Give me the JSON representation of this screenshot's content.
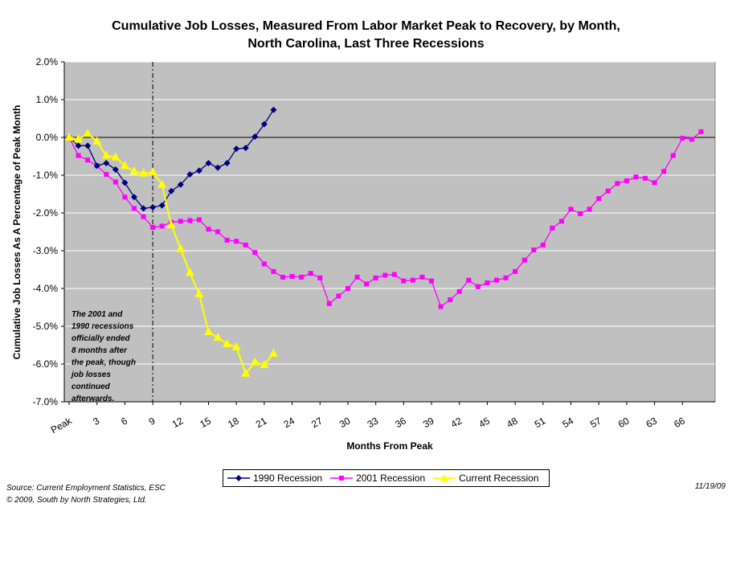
{
  "title_lines": [
    "Cumulative Job Losses, Measured From Labor Market Peak to Recovery, by Month,",
    "North Carolina, Last Three Recessions"
  ],
  "annotation_lines": [
    "The 2001 and",
    "1990 recessions",
    "officially ended",
    "8 months after",
    "the peak, though",
    "job losses",
    "continued",
    "afterwards."
  ],
  "source_lines": [
    "Source: Current Employment Statistics, ESC",
    "© 2009, South by North Strategies, Ltd."
  ],
  "date_text": "11/19/09",
  "colors": {
    "plot_bg": "#c0c0c0",
    "series_1990": "#000080",
    "series_2001": "#ff00ff",
    "series_current": "#ffff00"
  },
  "chart_data": {
    "type": "line",
    "title": "Cumulative Job Losses, Measured From Labor Market Peak to Recovery, by Month, North Carolina, Last Three Recessions",
    "xlabel": "Months From Peak",
    "ylabel": "Cumulative Job Losses As A Percentage of Peak Month",
    "xlim": [
      0,
      69
    ],
    "ylim": [
      -7.0,
      2.0
    ],
    "x_ticks": [
      0,
      3,
      6,
      9,
      12,
      15,
      18,
      21,
      24,
      27,
      30,
      33,
      36,
      39,
      42,
      45,
      48,
      51,
      54,
      57,
      60,
      63,
      66
    ],
    "x_tick_labels": [
      "Peak",
      "3",
      "6",
      "9",
      "12",
      "15",
      "18",
      "21",
      "24",
      "27",
      "30",
      "33",
      "36",
      "39",
      "42",
      "45",
      "48",
      "51",
      "54",
      "57",
      "60",
      "63",
      "66"
    ],
    "y_ticks": [
      2.0,
      1.0,
      0.0,
      -1.0,
      -2.0,
      -3.0,
      -4.0,
      -5.0,
      -6.0,
      -7.0
    ],
    "y_tick_labels": [
      "2.0%",
      "1.0%",
      "0.0%",
      "-1.0%",
      "-2.0%",
      "-3.0%",
      "-4.0%",
      "-5.0%",
      "-6.0%",
      "-7.0%"
    ],
    "grid": "horizontal",
    "vertical_marker_x": 9,
    "legend_position": "bottom",
    "series": [
      {
        "name": "1990 Recession",
        "marker": "diamond",
        "values": [
          0.0,
          -0.22,
          -0.22,
          -0.75,
          -0.68,
          -0.85,
          -1.2,
          -1.58,
          -1.88,
          -1.85,
          -1.8,
          -1.42,
          -1.25,
          -0.98,
          -0.88,
          -0.68,
          -0.8,
          -0.68,
          -0.3,
          -0.28,
          0.02,
          0.35,
          0.73
        ]
      },
      {
        "name": "2001 Recession",
        "marker": "square",
        "values": [
          0.0,
          -0.48,
          -0.6,
          -0.75,
          -0.98,
          -1.18,
          -1.58,
          -1.88,
          -2.1,
          -2.38,
          -2.35,
          -2.25,
          -2.22,
          -2.2,
          -2.18,
          -2.43,
          -2.5,
          -2.72,
          -2.75,
          -2.85,
          -3.05,
          -3.35,
          -3.55,
          -3.7,
          -3.68,
          -3.7,
          -3.6,
          -3.72,
          -4.4,
          -4.2,
          -4.0,
          -3.7,
          -3.88,
          -3.72,
          -3.65,
          -3.63,
          -3.8,
          -3.78,
          -3.7,
          -3.8,
          -4.48,
          -4.3,
          -4.08,
          -3.78,
          -3.95,
          -3.85,
          -3.78,
          -3.72,
          -3.55,
          -3.25,
          -2.98,
          -2.85,
          -2.4,
          -2.22,
          -1.9,
          -2.02,
          -1.9,
          -1.62,
          -1.42,
          -1.22,
          -1.15,
          -1.05,
          -1.08,
          -1.2,
          -0.9,
          -0.48,
          -0.02,
          -0.05,
          0.15
        ]
      },
      {
        "name": "Current Recession",
        "marker": "triangle",
        "values": [
          0.0,
          -0.05,
          0.1,
          -0.1,
          -0.48,
          -0.52,
          -0.75,
          -0.9,
          -0.95,
          -0.92,
          -1.25,
          -2.32,
          -2.95,
          -3.58,
          -4.15,
          -5.15,
          -5.3,
          -5.47,
          -5.55,
          -6.25,
          -5.95,
          -6.02,
          -5.72
        ]
      }
    ]
  }
}
